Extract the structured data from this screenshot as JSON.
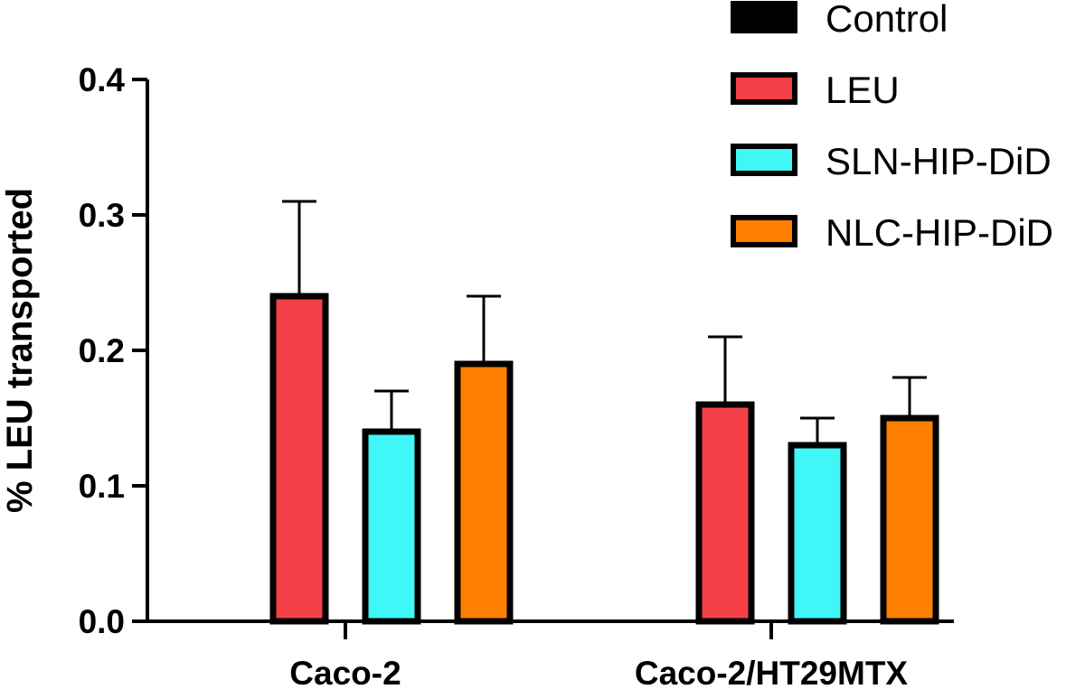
{
  "chart_data": {
    "type": "bar",
    "categories": [
      "Caco-2",
      "Caco-2/HT29MTX"
    ],
    "series": [
      {
        "name": "Control",
        "color": "#000000",
        "values": [
          0,
          0
        ],
        "errors": [
          0,
          0
        ]
      },
      {
        "name": "LEU",
        "color": "#f24046",
        "values": [
          0.24,
          0.16
        ],
        "errors": [
          0.07,
          0.05
        ]
      },
      {
        "name": "SLN-HIP-DiD",
        "color": "#41f6f6",
        "values": [
          0.14,
          0.13
        ],
        "errors": [
          0.03,
          0.02
        ]
      },
      {
        "name": "NLC-HIP-DiD",
        "color": "#fe7f00",
        "values": [
          0.19,
          0.15
        ],
        "errors": [
          0.05,
          0.03
        ]
      }
    ],
    "xlabel": "",
    "ylabel": "% LEU transported",
    "ylim": [
      0,
      0.4
    ],
    "yticks": [
      "0.0",
      "0.1",
      "0.2",
      "0.3",
      "0.4"
    ],
    "grid": false,
    "legend_position": "top-right",
    "error_bars": "upper"
  }
}
